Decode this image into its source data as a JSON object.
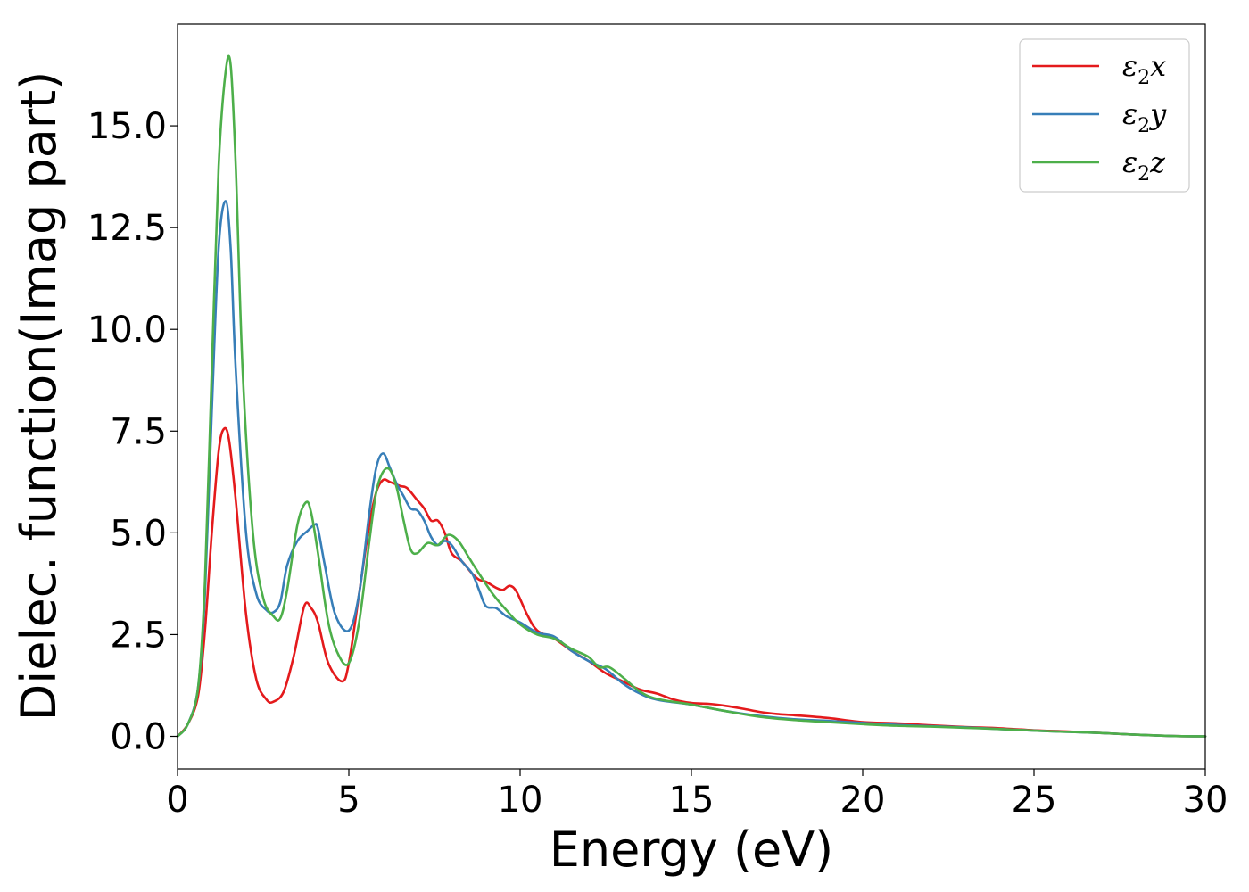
{
  "chart_data": {
    "type": "line",
    "xlabel": "Energy (eV)",
    "ylabel": "Dielec. function(Imag part)",
    "xlim": [
      0,
      30
    ],
    "ylim": [
      -0.8,
      17.5
    ],
    "xticks": [
      0,
      5,
      10,
      15,
      20,
      25,
      30
    ],
    "xtick_labels": [
      "0",
      "5",
      "10",
      "15",
      "20",
      "25",
      "30"
    ],
    "yticks": [
      0.0,
      2.5,
      5.0,
      7.5,
      10.0,
      12.5,
      15.0
    ],
    "ytick_labels": [
      "0.0",
      "2.5",
      "5.0",
      "7.5",
      "10.0",
      "12.5",
      "15.0"
    ],
    "grid": false,
    "legend_position": "top-right",
    "series": [
      {
        "name": "ε2x",
        "legend_base": "ε",
        "legend_sub": "2",
        "legend_suffix": "x",
        "color": "#e41a1c",
        "x": [
          0,
          0.3,
          0.6,
          0.8,
          1.0,
          1.2,
          1.35,
          1.5,
          1.7,
          2.0,
          2.3,
          2.6,
          2.8,
          3.1,
          3.4,
          3.7,
          3.9,
          4.1,
          4.4,
          4.8,
          5.0,
          5.3,
          5.6,
          5.8,
          6.0,
          6.2,
          6.5,
          6.7,
          7.0,
          7.2,
          7.4,
          7.6,
          7.8,
          8.0,
          8.3,
          8.6,
          8.8,
          9.0,
          9.3,
          9.5,
          9.7,
          9.9,
          10.2,
          10.5,
          11.0,
          11.5,
          12.0,
          12.5,
          13.0,
          13.5,
          14.0,
          14.5,
          15.0,
          15.5,
          16.0,
          16.5,
          17.0,
          17.5,
          18.0,
          19.0,
          20.0,
          21.0,
          22.0,
          23.0,
          24.0,
          25.0,
          26.0,
          27.0,
          28.0,
          29.0,
          30.0
        ],
        "y": [
          0.0,
          0.3,
          1.0,
          2.6,
          5.0,
          7.0,
          7.55,
          7.3,
          5.8,
          3.0,
          1.4,
          0.9,
          0.85,
          1.1,
          2.0,
          3.2,
          3.15,
          2.8,
          1.8,
          1.35,
          1.8,
          3.5,
          5.2,
          6.0,
          6.3,
          6.25,
          6.15,
          6.1,
          5.8,
          5.6,
          5.3,
          5.3,
          5.0,
          4.5,
          4.3,
          4.0,
          3.85,
          3.8,
          3.65,
          3.6,
          3.7,
          3.55,
          3.0,
          2.6,
          2.4,
          2.1,
          1.85,
          1.55,
          1.35,
          1.15,
          1.05,
          0.9,
          0.82,
          0.8,
          0.75,
          0.68,
          0.6,
          0.55,
          0.52,
          0.45,
          0.35,
          0.32,
          0.27,
          0.23,
          0.2,
          0.15,
          0.12,
          0.08,
          0.04,
          0.01,
          0.0
        ]
      },
      {
        "name": "ε2y",
        "legend_base": "ε",
        "legend_sub": "2",
        "legend_suffix": "y",
        "color": "#377eb8",
        "x": [
          0,
          0.3,
          0.6,
          0.8,
          1.0,
          1.2,
          1.4,
          1.55,
          1.7,
          2.0,
          2.3,
          2.6,
          2.8,
          3.0,
          3.2,
          3.5,
          3.8,
          4.0,
          4.1,
          4.3,
          4.6,
          5.0,
          5.3,
          5.6,
          5.8,
          6.0,
          6.2,
          6.4,
          6.6,
          6.8,
          7.0,
          7.2,
          7.4,
          7.6,
          7.8,
          8.0,
          8.3,
          8.6,
          8.8,
          9.0,
          9.3,
          9.6,
          10.0,
          10.5,
          11.0,
          11.5,
          12.0,
          12.5,
          13.0,
          13.5,
          14.0,
          15.0,
          16.0,
          17.0,
          18.0,
          19.0,
          20.0,
          21.0,
          22.0,
          23.0,
          24.0,
          25.0,
          26.0,
          27.0,
          28.0,
          29.0,
          30.0
        ],
        "y": [
          0.0,
          0.3,
          1.2,
          3.5,
          8.0,
          12.0,
          13.15,
          12.0,
          9.0,
          5.0,
          3.5,
          3.1,
          3.05,
          3.3,
          4.2,
          4.8,
          5.05,
          5.2,
          5.1,
          4.2,
          3.0,
          2.6,
          3.5,
          5.5,
          6.6,
          6.95,
          6.6,
          6.2,
          5.9,
          5.6,
          5.55,
          5.3,
          4.9,
          4.7,
          4.8,
          4.7,
          4.3,
          4.0,
          3.6,
          3.2,
          3.15,
          2.95,
          2.8,
          2.55,
          2.45,
          2.1,
          1.85,
          1.65,
          1.3,
          1.05,
          0.9,
          0.78,
          0.62,
          0.5,
          0.42,
          0.38,
          0.33,
          0.28,
          0.25,
          0.22,
          0.18,
          0.14,
          0.11,
          0.08,
          0.04,
          0.01,
          0.0
        ]
      },
      {
        "name": "ε2z",
        "legend_base": "ε",
        "legend_sub": "2",
        "legend_suffix": "z",
        "color": "#4daf4a",
        "x": [
          0,
          0.3,
          0.6,
          0.8,
          1.0,
          1.2,
          1.4,
          1.55,
          1.7,
          1.9,
          2.2,
          2.5,
          2.8,
          3.0,
          3.2,
          3.5,
          3.75,
          3.9,
          4.1,
          4.4,
          4.7,
          5.0,
          5.3,
          5.6,
          5.8,
          6.0,
          6.2,
          6.4,
          6.6,
          6.8,
          7.0,
          7.3,
          7.6,
          7.9,
          8.2,
          8.5,
          8.8,
          9.2,
          9.6,
          10.0,
          10.5,
          11.0,
          11.5,
          12.0,
          12.3,
          12.6,
          13.0,
          13.5,
          14.0,
          15.0,
          16.0,
          17.0,
          18.0,
          19.0,
          20.0,
          21.0,
          22.0,
          23.0,
          24.0,
          25.0,
          26.0,
          27.0,
          28.0,
          29.0,
          30.0
        ],
        "y": [
          0.0,
          0.3,
          1.2,
          3.8,
          9.0,
          14.0,
          16.3,
          16.5,
          14.0,
          9.0,
          5.0,
          3.4,
          2.95,
          2.9,
          3.6,
          5.2,
          5.75,
          5.5,
          4.5,
          2.8,
          2.0,
          1.8,
          2.8,
          4.8,
          6.0,
          6.5,
          6.55,
          6.1,
          5.3,
          4.6,
          4.5,
          4.75,
          4.7,
          4.95,
          4.8,
          4.4,
          4.0,
          3.5,
          3.1,
          2.75,
          2.5,
          2.4,
          2.15,
          1.95,
          1.7,
          1.7,
          1.45,
          1.1,
          0.92,
          0.78,
          0.62,
          0.48,
          0.4,
          0.35,
          0.3,
          0.26,
          0.24,
          0.21,
          0.18,
          0.14,
          0.11,
          0.08,
          0.04,
          0.01,
          0.0
        ]
      }
    ]
  }
}
